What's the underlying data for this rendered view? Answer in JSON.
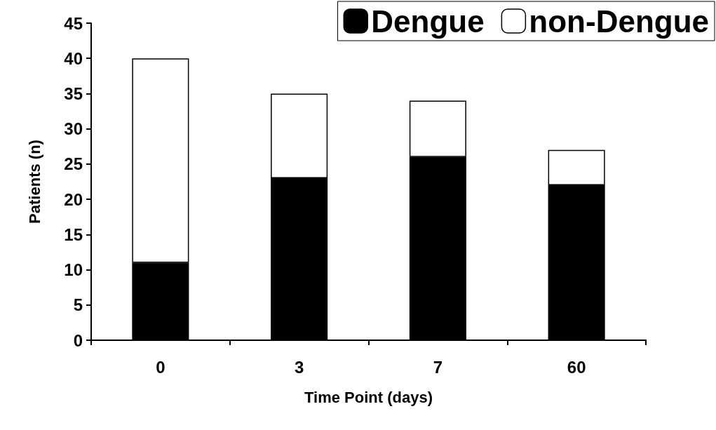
{
  "chart_data": {
    "type": "bar",
    "stacked": true,
    "xlabel": "Time Point (days)",
    "ylabel": "Patients (n)",
    "categories": [
      "0",
      "3",
      "7",
      "60"
    ],
    "series": [
      {
        "name": "Dengue",
        "color": "#000000",
        "values": [
          11,
          23,
          26,
          22
        ]
      },
      {
        "name": "non-Dengue",
        "color": "#ffffff",
        "values": [
          29,
          12,
          8,
          5
        ]
      }
    ],
    "ylim": [
      0,
      45
    ],
    "yticks": [
      0,
      5,
      10,
      15,
      20,
      25,
      30,
      35,
      40,
      45
    ],
    "grid": false,
    "legend": "top right"
  }
}
